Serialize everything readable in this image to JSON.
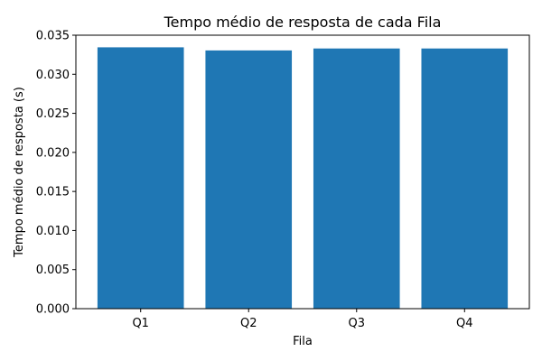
{
  "chart_data": {
    "type": "bar",
    "title": "Tempo médio de resposta de cada Fila",
    "xlabel": "Fila",
    "ylabel": "Tempo médio de resposta (s)",
    "categories": [
      "Q1",
      "Q2",
      "Q3",
      "Q4"
    ],
    "values": [
      0.03345,
      0.03305,
      0.0333,
      0.0333
    ],
    "ylim": [
      0,
      0.035
    ],
    "yticks": [
      "0.000",
      "0.005",
      "0.010",
      "0.015",
      "0.020",
      "0.025",
      "0.030",
      "0.035"
    ],
    "grid": false,
    "bar_color": "#1f77b4"
  }
}
